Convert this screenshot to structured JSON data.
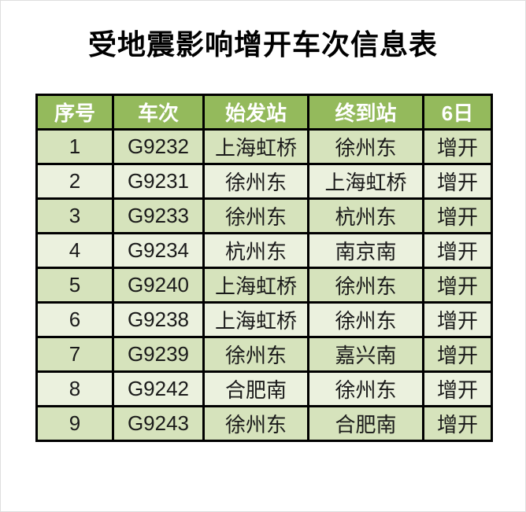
{
  "title": "受地震影响增开车次信息表",
  "table": {
    "headers": [
      "序号",
      "车次",
      "始发站",
      "终到站",
      "6日"
    ],
    "rows": [
      [
        "1",
        "G9232",
        "上海虹桥",
        "徐州东",
        "增开"
      ],
      [
        "2",
        "G9231",
        "徐州东",
        "上海虹桥",
        "增开"
      ],
      [
        "3",
        "G9233",
        "徐州东",
        "杭州东",
        "增开"
      ],
      [
        "4",
        "G9234",
        "杭州东",
        "南京南",
        "增开"
      ],
      [
        "5",
        "G9240",
        "上海虹桥",
        "徐州东",
        "增开"
      ],
      [
        "6",
        "G9238",
        "上海虹桥",
        "徐州东",
        "增开"
      ],
      [
        "7",
        "G9239",
        "徐州东",
        "嘉兴南",
        "增开"
      ],
      [
        "8",
        "G9242",
        "合肥南",
        "徐州东",
        "增开"
      ],
      [
        "9",
        "G9243",
        "徐州东",
        "合肥南",
        "增开"
      ]
    ],
    "colors": {
      "header_bg": "#94BA5C",
      "header_text": "#FFFFFF",
      "row_odd_bg": "#D6E3BC",
      "row_even_bg": "#EBF1DE",
      "border": "#000000",
      "cell_text": "#1A1A1A"
    }
  }
}
